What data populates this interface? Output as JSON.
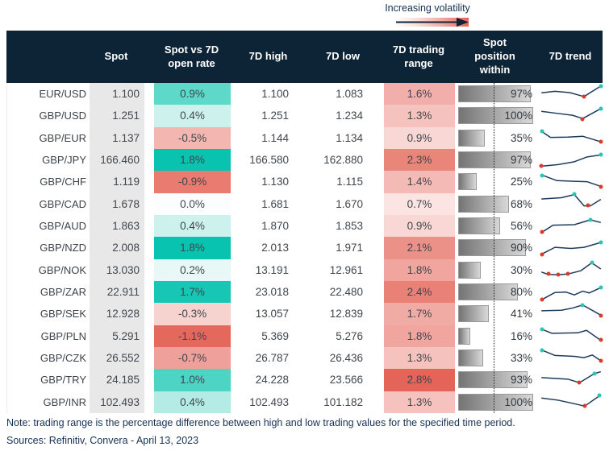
{
  "legend": {
    "label": "Increasing volatility",
    "gradient_from": "#ffffff",
    "gradient_to": "#e4655a",
    "arrow_color": "#0d2336"
  },
  "chart_data": {
    "type": "table",
    "columns": [
      "",
      "Spot",
      "Spot vs 7D\nopen rate",
      "7D high",
      "7D low",
      "7D trading\nrange",
      "Spot\nposition\nwithin",
      "7D trend"
    ],
    "rows": [
      {
        "pair": "EUR/USD",
        "spot": "1.100",
        "chg": "0.9%",
        "chg_bg": "#5ed8c9",
        "high": "1.100",
        "low": "1.083",
        "range": "1.6%",
        "range_bg": "#f2aeaa",
        "pos": "97%",
        "pos_val": 97,
        "trend": {
          "pts": [
            [
              4,
              45
            ],
            [
              25,
              38
            ],
            [
              48,
              44
            ],
            [
              70,
              62
            ],
            [
              96,
              14
            ]
          ],
          "dots": [
            {
              "x": 70,
              "y": 62,
              "c": "low"
            },
            {
              "x": 96,
              "y": 14,
              "c": "high"
            }
          ]
        }
      },
      {
        "pair": "GBP/USD",
        "spot": "1.251",
        "chg": "0.4%",
        "chg_bg": "#cdf2ee",
        "high": "1.251",
        "low": "1.234",
        "range": "1.3%",
        "range_bg": "#f5c2be",
        "pos": "100%",
        "pos_val": 100,
        "trend": {
          "pts": [
            [
              4,
              30
            ],
            [
              30,
              40
            ],
            [
              52,
              48
            ],
            [
              68,
              63
            ],
            [
              96,
              18
            ]
          ],
          "dots": [
            {
              "x": 68,
              "y": 63,
              "c": "low"
            },
            {
              "x": 96,
              "y": 18,
              "c": "high"
            }
          ]
        }
      },
      {
        "pair": "GBP/EUR",
        "spot": "1.137",
        "chg": "-0.5%",
        "chg_bg": "#f3b6b1",
        "high": "1.144",
        "low": "1.134",
        "range": "0.9%",
        "range_bg": "#f8d7d4",
        "pos": "35%",
        "pos_val": 35,
        "trend": {
          "pts": [
            [
              5,
              20
            ],
            [
              18,
              46
            ],
            [
              45,
              45
            ],
            [
              68,
              41
            ],
            [
              96,
              66
            ]
          ],
          "dots": [
            {
              "x": 5,
              "y": 20,
              "c": "high"
            },
            {
              "x": 96,
              "y": 66,
              "c": "low"
            }
          ]
        }
      },
      {
        "pair": "GBP/JPY",
        "spot": "166.460",
        "chg": "1.8%",
        "chg_bg": "#09c3b1",
        "high": "166.580",
        "low": "162.880",
        "range": "2.3%",
        "range_bg": "#ea8579",
        "pos": "97%",
        "pos_val": 97,
        "trend": {
          "pts": [
            [
              4,
              78
            ],
            [
              30,
              71
            ],
            [
              55,
              58
            ],
            [
              75,
              36
            ],
            [
              96,
              27
            ]
          ],
          "dots": [
            {
              "x": 4,
              "y": 78,
              "c": "low"
            },
            {
              "x": 96,
              "y": 27,
              "c": "high"
            }
          ]
        }
      },
      {
        "pair": "GBP/CHF",
        "spot": "1.119",
        "chg": "-0.9%",
        "chg_bg": "#e97b70",
        "high": "1.130",
        "low": "1.115",
        "range": "1.4%",
        "range_bg": "#f4bab5",
        "pos": "25%",
        "pos_val": 25,
        "trend": {
          "pts": [
            [
              5,
              20
            ],
            [
              28,
              45
            ],
            [
              55,
              48
            ],
            [
              75,
              50
            ],
            [
              96,
              71
            ]
          ],
          "dots": [
            {
              "x": 5,
              "y": 20,
              "c": "high"
            },
            {
              "x": 96,
              "y": 71,
              "c": "low"
            }
          ]
        }
      },
      {
        "pair": "GBP/CAD",
        "spot": "1.678",
        "chg": "0.0%",
        "chg_bg": "#fbfdfe",
        "high": "1.681",
        "low": "1.670",
        "range": "0.7%",
        "range_bg": "#fbe4e2",
        "pos": "68%",
        "pos_val": 68,
        "trend": {
          "pts": [
            [
              4,
              26
            ],
            [
              35,
              20
            ],
            [
              55,
              6
            ],
            [
              70,
              57
            ],
            [
              80,
              57
            ],
            [
              96,
              28
            ]
          ],
          "dots": [
            {
              "x": 55,
              "y": 6,
              "c": "high"
            },
            {
              "x": 76,
              "y": 57,
              "c": "low"
            }
          ]
        }
      },
      {
        "pair": "GBP/AUD",
        "spot": "1.863",
        "chg": "0.4%",
        "chg_bg": "#cdf2ee",
        "high": "1.870",
        "low": "1.853",
        "range": "0.9%",
        "range_bg": "#f8d7d4",
        "pos": "56%",
        "pos_val": 56,
        "trend": {
          "pts": [
            [
              5,
              78
            ],
            [
              22,
              46
            ],
            [
              55,
              44
            ],
            [
              80,
              22
            ],
            [
              96,
              34
            ]
          ],
          "dots": [
            {
              "x": 5,
              "y": 78,
              "c": "low"
            },
            {
              "x": 80,
              "y": 22,
              "c": "high"
            }
          ]
        }
      },
      {
        "pair": "GBP/NZD",
        "spot": "2.008",
        "chg": "1.8%",
        "chg_bg": "#09c3b1",
        "high": "2.013",
        "low": "1.971",
        "range": "2.1%",
        "range_bg": "#ec9188",
        "pos": "90%",
        "pos_val": 90,
        "trend": {
          "pts": [
            [
              5,
              78
            ],
            [
              25,
              48
            ],
            [
              50,
              53
            ],
            [
              70,
              48
            ],
            [
              96,
              26
            ]
          ],
          "dots": [
            {
              "x": 5,
              "y": 78,
              "c": "low"
            },
            {
              "x": 96,
              "y": 26,
              "c": "high"
            }
          ]
        }
      },
      {
        "pair": "GBP/NOK",
        "spot": "13.030",
        "chg": "0.2%",
        "chg_bg": "#e7f8f6",
        "high": "13.191",
        "low": "12.961",
        "range": "1.8%",
        "range_bg": "#f0a59f",
        "pos": "30%",
        "pos_val": 30,
        "trend": {
          "pts": [
            [
              4,
              58
            ],
            [
              15,
              69
            ],
            [
              30,
              70
            ],
            [
              45,
              67
            ],
            [
              65,
              52
            ],
            [
              82,
              16
            ],
            [
              96,
              44
            ]
          ],
          "dots": [
            {
              "x": 15,
              "y": 69,
              "c": "low"
            },
            {
              "x": 30,
              "y": 70,
              "c": "low"
            },
            {
              "x": 45,
              "y": 67,
              "c": "low"
            },
            {
              "x": 82,
              "y": 16,
              "c": "high"
            }
          ]
        }
      },
      {
        "pair": "GBP/ZAR",
        "spot": "22.911",
        "chg": "1.7%",
        "chg_bg": "#17c6b4",
        "high": "23.018",
        "low": "22.480",
        "range": "2.4%",
        "range_bg": "#e98177",
        "pos": "80%",
        "pos_val": 80,
        "trend": {
          "pts": [
            [
              5,
              84
            ],
            [
              25,
              52
            ],
            [
              42,
              50
            ],
            [
              55,
              63
            ],
            [
              68,
              46
            ],
            [
              78,
              54
            ],
            [
              96,
              30
            ]
          ],
          "dots": [
            {
              "x": 5,
              "y": 84,
              "c": "low"
            },
            {
              "x": 96,
              "y": 30,
              "c": "high"
            }
          ]
        }
      },
      {
        "pair": "GBP/SEK",
        "spot": "12.928",
        "chg": "-0.3%",
        "chg_bg": "#f7d3d0",
        "high": "13.057",
        "low": "12.839",
        "range": "1.7%",
        "range_bg": "#f1aba5",
        "pos": "41%",
        "pos_val": 41,
        "trend": {
          "pts": [
            [
              4,
              36
            ],
            [
              35,
              34
            ],
            [
              52,
              24
            ],
            [
              68,
              10
            ],
            [
              96,
              56
            ]
          ],
          "dots": [
            {
              "x": 68,
              "y": 10,
              "c": "high"
            },
            {
              "x": 96,
              "y": 56,
              "c": "low"
            }
          ]
        }
      },
      {
        "pair": "GBP/PLN",
        "spot": "5.291",
        "chg": "-1.1%",
        "chg_bg": "#e5685d",
        "high": "5.369",
        "low": "5.276",
        "range": "1.8%",
        "range_bg": "#f0a59f",
        "pos": "16%",
        "pos_val": 16,
        "trend": {
          "pts": [
            [
              5,
              18
            ],
            [
              20,
              36
            ],
            [
              60,
              34
            ],
            [
              74,
              23
            ],
            [
              96,
              68
            ]
          ],
          "dots": [
            {
              "x": 5,
              "y": 18,
              "c": "high"
            },
            {
              "x": 96,
              "y": 68,
              "c": "low"
            }
          ]
        }
      },
      {
        "pair": "GBP/CZK",
        "spot": "26.552",
        "chg": "-0.7%",
        "chg_bg": "#efa09a",
        "high": "26.787",
        "low": "26.436",
        "range": "1.3%",
        "range_bg": "#f5c2be",
        "pos": "33%",
        "pos_val": 33,
        "trend": {
          "pts": [
            [
              5,
              14
            ],
            [
              25,
              38
            ],
            [
              55,
              42
            ],
            [
              70,
              48
            ],
            [
              83,
              36
            ],
            [
              96,
              62
            ]
          ],
          "dots": [
            {
              "x": 5,
              "y": 14,
              "c": "high"
            },
            {
              "x": 96,
              "y": 62,
              "c": "low"
            }
          ]
        }
      },
      {
        "pair": "GBP/TRY",
        "spot": "24.185",
        "chg": "1.0%",
        "chg_bg": "#4ed4c5",
        "high": "24.228",
        "low": "23.566",
        "range": "2.8%",
        "range_bg": "#e56459",
        "pos": "93%",
        "pos_val": 93,
        "trend": {
          "pts": [
            [
              4,
              40
            ],
            [
              45,
              47
            ],
            [
              63,
              63
            ],
            [
              86,
              22
            ],
            [
              96,
              13
            ]
          ],
          "dots": [
            {
              "x": 63,
              "y": 63,
              "c": "low"
            },
            {
              "x": 86,
              "y": 22,
              "c": "high"
            }
          ]
        }
      },
      {
        "pair": "GBP/INR",
        "spot": "102.493",
        "chg": "0.4%",
        "chg_bg": "#b4ece5",
        "high": "102.493",
        "low": "101.182",
        "range": "1.3%",
        "range_bg": "#f5c2be",
        "pos": "100%",
        "pos_val": 100,
        "trend": {
          "pts": [
            [
              4,
              30
            ],
            [
              30,
              40
            ],
            [
              55,
              56
            ],
            [
              71,
              67
            ],
            [
              94,
              20
            ]
          ],
          "dots": [
            {
              "x": 71,
              "y": 67,
              "c": "low"
            },
            {
              "x": 94,
              "y": 20,
              "c": "high"
            }
          ]
        }
      }
    ]
  },
  "footer": {
    "note": "Note: trading range is the percentage difference between high and low trading values for the specified time period.",
    "sources": "Sources: Refinitiv, Convera - April 13, 2023"
  },
  "colors": {
    "header_bg": "#0d2336",
    "spot_col_bg": "#e8e8e8",
    "trend_line": "#1f3b5c",
    "low_dot": "#d83b2a",
    "high_dot": "#2bc4b3",
    "bar_border": "#999999"
  }
}
